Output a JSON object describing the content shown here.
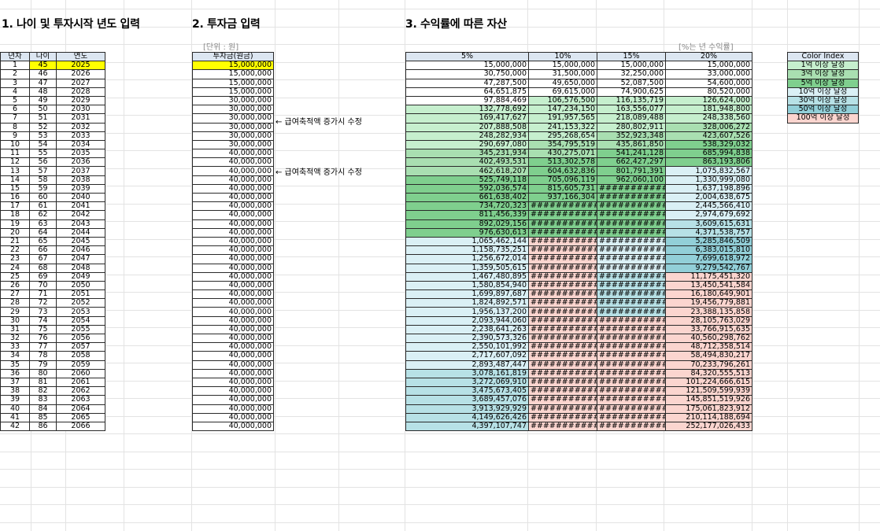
{
  "sections": {
    "s1": "1. 나이 및 투자시작 년도 입력",
    "s2": "2. 투자금 입력",
    "s3": "3. 수익률에 따른 자산"
  },
  "unit_label": "[단위 : 원]",
  "rate_label": "[%는 년 수익률]",
  "notes": [
    "← 급여축적액 증가시 수정",
    "← 급여축적액 증가시 수정"
  ],
  "age_table": {
    "headers": [
      "년차",
      "나이",
      "연도"
    ],
    "start_age": 45,
    "start_year": 2025,
    "years": 42
  },
  "invest_table": {
    "header": "투자금(원금)",
    "amounts": [
      "15,000,000",
      "15,000,000",
      "15,000,000",
      "15,000,000",
      "30,000,000",
      "30,000,000",
      "30,000,000",
      "30,000,000",
      "30,000,000",
      "30,000,000",
      "40,000,000",
      "40,000,000",
      "40,000,000",
      "40,000,000",
      "40,000,000",
      "40,000,000",
      "40,000,000",
      "40,000,000",
      "40,000,000",
      "40,000,000",
      "40,000,000",
      "40,000,000",
      "40,000,000",
      "40,000,000",
      "40,000,000",
      "40,000,000",
      "40,000,000",
      "40,000,000",
      "40,000,000",
      "40,000,000",
      "40,000,000",
      "40,000,000",
      "40,000,000",
      "40,000,000",
      "40,000,000",
      "40,000,000",
      "40,000,000",
      "40,000,000",
      "40,000,000",
      "40,000,000",
      "40,000,000",
      "40,000,000"
    ]
  },
  "asset_table": {
    "headers": [
      "5%",
      "10%",
      "15%",
      "20%"
    ],
    "overflow": "###########",
    "c5": [
      "15,000,000",
      "30,750,000",
      "47,287,500",
      "64,651,875",
      "97,884,469",
      "132,778,692",
      "169,417,627",
      "207,888,508",
      "248,282,934",
      "290,697,080",
      "345,231,934",
      "402,493,531",
      "462,618,207",
      "525,749,118",
      "592,036,574",
      "661,638,402",
      "734,720,323",
      "811,456,339",
      "892,029,156",
      "976,630,613",
      "1,065,462,144",
      "1,158,735,251",
      "1,256,672,014",
      "1,359,505,615",
      "1,467,480,895",
      "1,580,854,940",
      "1,699,897,687",
      "1,824,892,571",
      "1,956,137,200",
      "2,093,944,060",
      "2,238,641,263",
      "2,390,573,326",
      "2,550,101,992",
      "2,717,607,092",
      "2,893,487,447",
      "3,078,161,819",
      "3,272,069,910",
      "3,475,673,405",
      "3,689,457,076",
      "3,913,929,929",
      "4,149,626,426",
      "4,397,107,747"
    ],
    "c10": [
      "15,000,000",
      "31,500,000",
      "49,650,000",
      "69,615,000",
      "106,576,500",
      "147,234,150",
      "191,957,565",
      "241,153,322",
      "295,268,654",
      "354,795,519",
      "430,275,071",
      "513,302,578",
      "604,632,836",
      "705,096,119",
      "815,605,731",
      "937,166,304"
    ],
    "c15": [
      "15,000,000",
      "32,250,000",
      "52,087,500",
      "74,900,625",
      "116,135,719",
      "163,556,077",
      "218,089,488",
      "280,802,911",
      "352,923,348",
      "435,861,850",
      "541,241,128",
      "662,427,297",
      "801,791,391",
      "962,060,100"
    ],
    "c20": [
      "15,000,000",
      "33,000,000",
      "54,600,000",
      "80,520,000",
      "126,624,000",
      "181,948,800",
      "248,338,560",
      "328,006,272",
      "423,607,526",
      "538,329,032",
      "685,994,838",
      "863,193,806",
      "1,075,832,567",
      "1,330,999,080",
      "1,637,198,896",
      "2,004,638,675",
      "2,445,566,410",
      "2,974,679,692",
      "3,609,615,631",
      "4,371,538,757",
      "5,285,846,509",
      "6,383,015,810",
      "7,699,618,972",
      "9,279,542,767",
      "11,175,451,320",
      "13,450,541,584",
      "16,180,649,901",
      "19,456,779,881",
      "23,388,135,858",
      "28,105,763,029",
      "33,766,915,635",
      "40,560,298,762",
      "48,712,358,514",
      "58,494,830,217",
      "70,233,796,261",
      "84,320,555,513",
      "101,224,666,615",
      "121,509,599,939",
      "145,851,519,926",
      "175,061,823,912",
      "210,114,188,694",
      "252,177,026,433"
    ],
    "tiers": [
      {
        "min": 100000000,
        "color": "#c6efce"
      },
      {
        "min": 300000000,
        "color": "#a9dfb1"
      },
      {
        "min": 500000000,
        "color": "#7fcf8e"
      },
      {
        "min": 1000000000,
        "color": "#daf0f5"
      },
      {
        "min": 3000000000,
        "color": "#b7e1e6"
      },
      {
        "min": 5000000000,
        "color": "#92cfd8"
      },
      {
        "min": 10000000000,
        "color": "#fbd5cf"
      }
    ],
    "overflow_tier": {
      "c10": [
        {
          "until": 20,
          "color": "#7fcf8e"
        },
        {
          "until": 99,
          "color": "#fbd5cf"
        }
      ],
      "c15": [
        {
          "until": 20,
          "color": "#7fcf8e"
        },
        {
          "until": 24,
          "color": "#daf0f5"
        },
        {
          "until": 29,
          "color": "#b7e1e6"
        },
        {
          "until": 99,
          "color": "#fbd5cf"
        }
      ]
    }
  },
  "color_index": {
    "header": "Color Index",
    "items": [
      {
        "label": "1억 이상 달성",
        "color": "#c6efce"
      },
      {
        "label": "3억 이상 달성",
        "color": "#a9dfb1"
      },
      {
        "label": "5억 이상 달성",
        "color": "#7fcf8e"
      },
      {
        "label": "10억 이상 달성",
        "color": "#daf0f5"
      },
      {
        "label": "30억 이상 달성",
        "color": "#b7e1e6"
      },
      {
        "label": "50억 이상 달성",
        "color": "#92cfd8"
      },
      {
        "label": "100억 이상 달성",
        "color": "#fbd5cf"
      }
    ]
  }
}
